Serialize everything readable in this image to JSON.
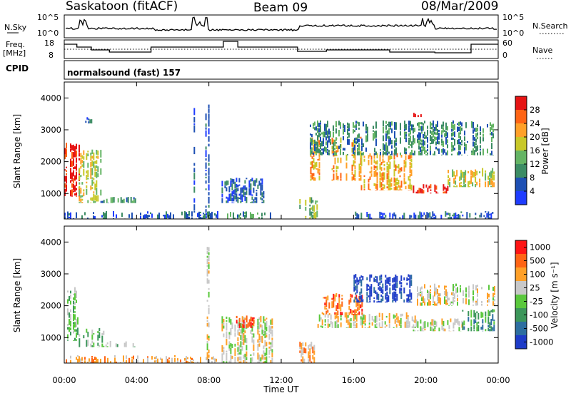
{
  "header": {
    "title_left": "Saskatoon (fitACF)",
    "title_center": "Beam 09",
    "title_right": "08/Mar/2009"
  },
  "top_panels": {
    "nsky_label": "N.Sky",
    "nsky_ticks": [
      "10^5",
      "10^0"
    ],
    "nsearch_label": "N.Search",
    "nsearch_ticks": [
      "10^5",
      "10^0"
    ],
    "freq_label": "Freq.",
    "freq_unit": "[MHz]",
    "freq_ticks": [
      "18",
      "8"
    ],
    "nave_label": "Nave",
    "nave_ticks": [
      "60",
      "0"
    ],
    "cpid_label": "CPID",
    "cpid_value": "normalsound (fast) 157"
  },
  "chart_data": [
    {
      "type": "heatmap",
      "name": "power",
      "ylabel": "Slant Range [km]",
      "ylim": [
        200,
        4500
      ],
      "yticks": [
        "1000",
        "2000",
        "3000",
        "4000"
      ],
      "xlim": [
        0,
        24
      ],
      "colorbar": {
        "label": "Power [dB]",
        "ticks": [
          "4",
          "8",
          "12",
          "16",
          "20",
          "24",
          "28"
        ],
        "colors": [
          "#1e3cff",
          "#1e50b4",
          "#3c8c64",
          "#64b464",
          "#c8c828",
          "#ffa028",
          "#ff6414",
          "#e61414"
        ]
      },
      "echo_regions": [
        {
          "t": [
            0.0,
            0.8
          ],
          "r": [
            900,
            2600
          ],
          "level": 7
        },
        {
          "t": [
            0.8,
            2.0
          ],
          "r": [
            700,
            2400
          ],
          "level": 4
        },
        {
          "t": [
            1.0,
            1.5
          ],
          "r": [
            3200,
            3450
          ],
          "level": 1
        },
        {
          "t": [
            2.0,
            4.0
          ],
          "r": [
            700,
            900
          ],
          "level": 2
        },
        {
          "t": [
            0.0,
            8.5
          ],
          "r": [
            200,
            450
          ],
          "level": 1
        },
        {
          "t": [
            7.0,
            7.2
          ],
          "r": [
            400,
            3700
          ],
          "level": 1
        },
        {
          "t": [
            7.8,
            8.0
          ],
          "r": [
            200,
            3900
          ],
          "level": 1
        },
        {
          "t": [
            8.7,
            11.0
          ],
          "r": [
            700,
            1500
          ],
          "level": 1
        },
        {
          "t": [
            9.0,
            11.5
          ],
          "r": [
            200,
            450
          ],
          "level": 2
        },
        {
          "t": [
            13.0,
            14.0
          ],
          "r": [
            200,
            900
          ],
          "level": 3
        },
        {
          "t": [
            13.6,
            16.4
          ],
          "r": [
            1400,
            2800
          ],
          "level": 5
        },
        {
          "t": [
            16.4,
            19.2
          ],
          "r": [
            1100,
            2300
          ],
          "level": 5
        },
        {
          "t": [
            19.2,
            21.2
          ],
          "r": [
            1000,
            1300
          ],
          "level": 7
        },
        {
          "t": [
            21.2,
            23.8
          ],
          "r": [
            1200,
            1800
          ],
          "level": 4
        },
        {
          "t": [
            13.5,
            23.8
          ],
          "r": [
            2200,
            3300
          ],
          "level": 2
        },
        {
          "t": [
            16.0,
            23.8
          ],
          "r": [
            200,
            450
          ],
          "level": 1
        },
        {
          "t": [
            19.3,
            19.7
          ],
          "r": [
            3400,
            3550
          ],
          "level": 7
        }
      ]
    },
    {
      "type": "heatmap",
      "name": "velocity",
      "ylabel": "Slant Range [km]",
      "xlabel": "Time UT",
      "ylim": [
        200,
        4500
      ],
      "yticks": [
        "1000",
        "2000",
        "3000",
        "4000"
      ],
      "xlim": [
        0,
        24
      ],
      "xticks": [
        "00:00",
        "04:00",
        "08:00",
        "12:00",
        "16:00",
        "20:00",
        "00:00"
      ],
      "colorbar": {
        "label": "Velocity [m s⁻¹]",
        "ticks": [
          "1000",
          "500",
          "100",
          "25",
          "-25",
          "-100",
          "-500",
          "-1000"
        ],
        "colors": [
          "#1e3cc8",
          "#2d6ea0",
          "#3c965a",
          "#5ac83c",
          "#c8c8c8",
          "#ffa028",
          "#ff6414",
          "#ff1414"
        ]
      },
      "echo_regions": [
        {
          "t": [
            0.0,
            0.8
          ],
          "r": [
            900,
            2600
          ],
          "level": 3
        },
        {
          "t": [
            0.8,
            2.2
          ],
          "r": [
            700,
            1300
          ],
          "level": 3
        },
        {
          "t": [
            2.2,
            4.0
          ],
          "r": [
            700,
            900
          ],
          "level": 3
        },
        {
          "t": [
            0.0,
            8.5
          ],
          "r": [
            200,
            450
          ],
          "level": 5
        },
        {
          "t": [
            7.8,
            8.0
          ],
          "r": [
            200,
            3900
          ],
          "level": 4
        },
        {
          "t": [
            8.7,
            11.5
          ],
          "r": [
            200,
            1700
          ],
          "level": 4
        },
        {
          "t": [
            9.5,
            10.5
          ],
          "r": [
            1300,
            1700
          ],
          "level": 6
        },
        {
          "t": [
            13.0,
            14.0
          ],
          "r": [
            200,
            900
          ],
          "level": 5
        },
        {
          "t": [
            14.0,
            19.5
          ],
          "r": [
            1300,
            1800
          ],
          "level": 4
        },
        {
          "t": [
            14.3,
            16.5
          ],
          "r": [
            1700,
            2400
          ],
          "level": 6
        },
        {
          "t": [
            16.0,
            19.2
          ],
          "r": [
            2100,
            3000
          ],
          "level": 0
        },
        {
          "t": [
            19.2,
            22.0
          ],
          "r": [
            1200,
            1600
          ],
          "level": 4
        },
        {
          "t": [
            22.0,
            23.8
          ],
          "r": [
            1200,
            1900
          ],
          "level": 2
        },
        {
          "t": [
            19.5,
            23.8
          ],
          "r": [
            2000,
            2700
          ],
          "level": 4
        }
      ]
    }
  ]
}
